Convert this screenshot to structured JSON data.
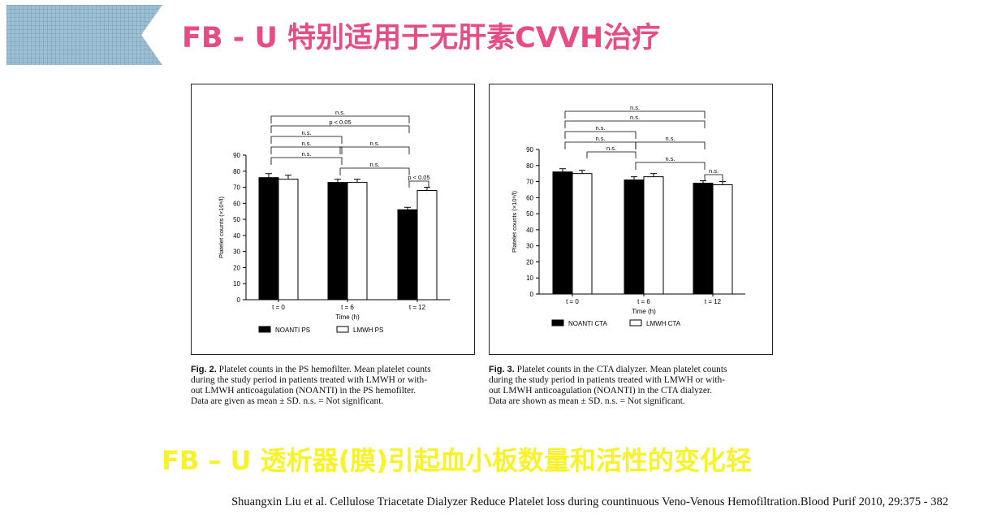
{
  "slide": {
    "title": "FB - U 特别适用于无肝素CVVH治疗",
    "subtitle": "FB – U 透析器(膜)引起血小板数量和活性的变化轻",
    "citation": "Shuangxin Liu et al. Cellulose Triacetate Dialyzer Reduce Platelet loss during countinuous Veno-Venous Hemofiltration.Blood Purif 2010, 29:375 - 382",
    "colors": {
      "title": "#e64c86",
      "subtitle": "#f7f22a",
      "banner": "#8fb4cc"
    }
  },
  "chart_data": [
    {
      "type": "bar",
      "categories": [
        "t = 0",
        "t = 6",
        "t = 12"
      ],
      "xlabel": "Time (h)",
      "ylabel": "Platelet counts (×10⁹/l)",
      "ylim": [
        0,
        90
      ],
      "yticks": [
        "0",
        "10",
        "20",
        "30",
        "40",
        "50",
        "60",
        "70",
        "80",
        "90"
      ],
      "series": [
        {
          "name": "NOANTI PS",
          "values": [
            76,
            73,
            56
          ],
          "errors": [
            2.5,
            2,
            1.5
          ],
          "color": "#000000"
        },
        {
          "name": "LMWH PS",
          "values": [
            75,
            73,
            68
          ],
          "errors": [
            2.5,
            2,
            2
          ],
          "color": "#ffffff"
        }
      ],
      "annotations": [
        "n.s.",
        "p < 0.05",
        "n.s.",
        "n.s.",
        "n.s.",
        "n.s.",
        "n.s.",
        "p < 0.05"
      ],
      "caption_label": "Fig. 2.",
      "caption_lines": [
        "Platelet counts in the PS hemofilter. Mean platelet counts",
        "during the study period in patients treated with LMWH or with-",
        "out LMWH anticoagulation (NOANTI) in the PS hemofilter.",
        "Data are given as mean ± SD. n.s. = Not significant."
      ]
    },
    {
      "type": "bar",
      "categories": [
        "t = 0",
        "t = 6",
        "t = 12"
      ],
      "xlabel": "Time (h)",
      "ylabel": "Platelet counts (×10⁹/l)",
      "ylim": [
        0,
        90
      ],
      "yticks": [
        "0",
        "10",
        "20",
        "30",
        "40",
        "50",
        "60",
        "70",
        "80",
        "90"
      ],
      "series": [
        {
          "name": "NOANTI CTA",
          "values": [
            76,
            71,
            69
          ],
          "errors": [
            2,
            2,
            1.5
          ],
          "color": "#000000"
        },
        {
          "name": "LMWH CTA",
          "values": [
            75,
            73,
            68
          ],
          "errors": [
            2,
            2,
            2
          ],
          "color": "#ffffff"
        }
      ],
      "annotations": [
        "n.s.",
        "n.s.",
        "n.s.",
        "n.s.",
        "n.s.",
        "n.s.",
        "n.s.",
        "n.s."
      ],
      "caption_label": "Fig. 3.",
      "caption_lines": [
        "Platelet counts in the CTA dialyzer. Mean platelet counts",
        "during the study period in patients treated with LMWH or with-",
        "out LMWH anticoagulation (NOANTI) in the CTA dialyzer.",
        "Data are shown as mean ± SD. n.s. = Not significant."
      ]
    }
  ]
}
